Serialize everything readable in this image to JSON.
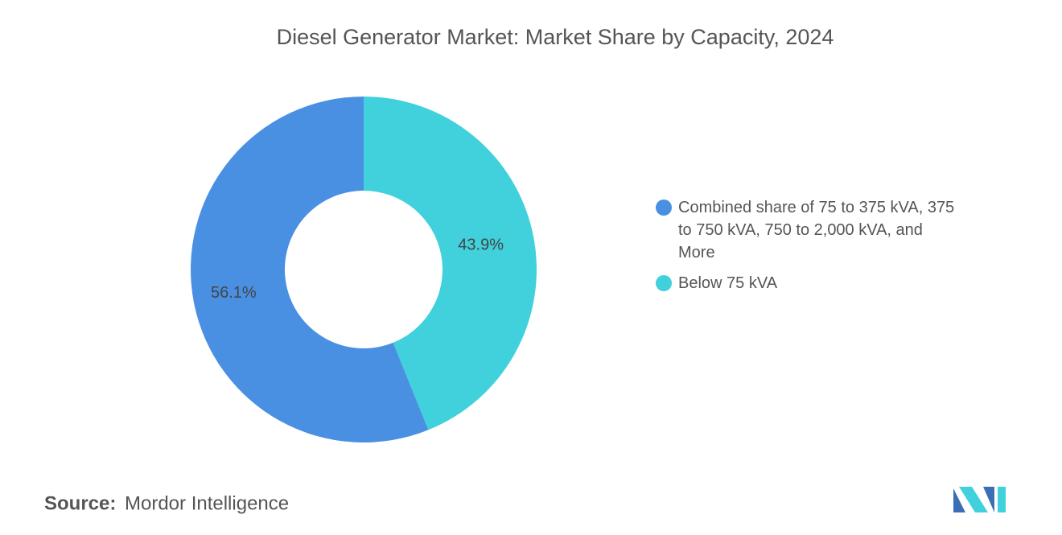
{
  "chart_data": {
    "type": "donut",
    "title": "Diesel Generator Market: Market Share by Capacity, 2024",
    "categories": [
      "Combined share of 75 to 375 kVA, 375 to 750 kVA, 750 to 2,000 kVA, and More",
      "Below 75 kVA"
    ],
    "values": [
      56.1,
      43.9
    ],
    "value_labels": [
      "56.1%",
      "43.9%"
    ],
    "colors": [
      "#4a90e2",
      "#40d1dc"
    ],
    "source_label": "Source:",
    "source": "Mordor Intelligence"
  }
}
